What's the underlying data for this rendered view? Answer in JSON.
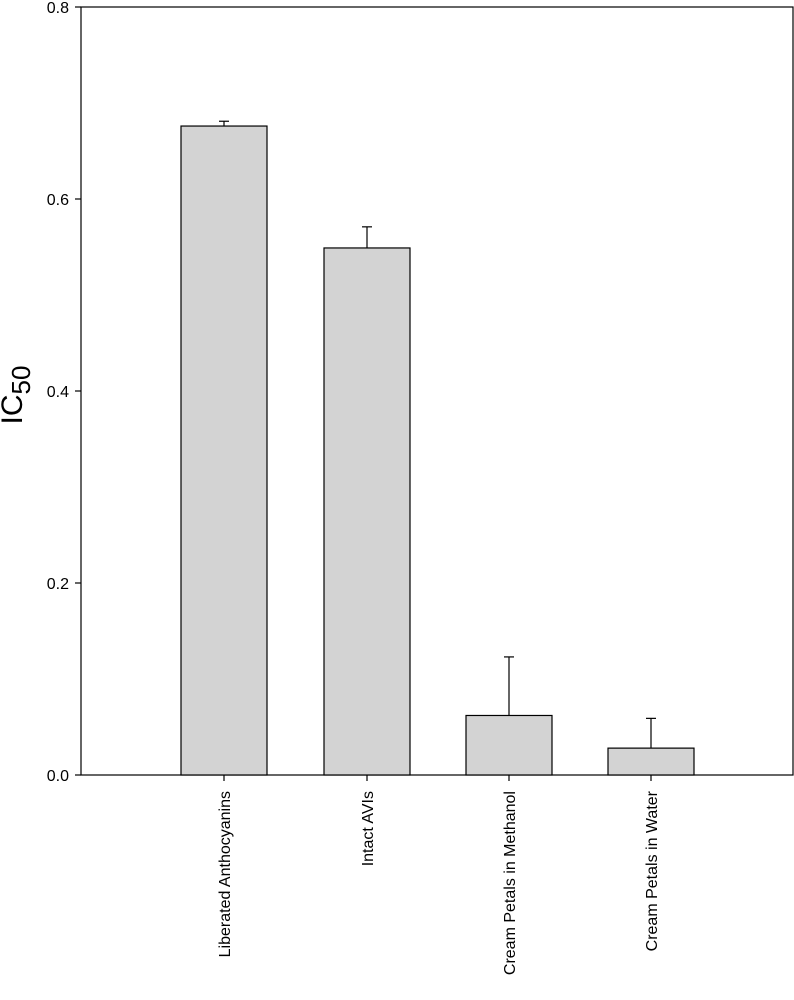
{
  "chart_data": {
    "type": "bar",
    "categories": [
      "Liberated Anthocyanins",
      "Intact AVIs",
      "Cream Petals in Methanol",
      "Cream Petals in Water"
    ],
    "series": [
      {
        "values": [
          0.676,
          0.549,
          0.062,
          0.028
        ],
        "error_plus": [
          0.005,
          0.022,
          0.061,
          0.031
        ]
      }
    ],
    "title": "",
    "xlabel": "",
    "ylabel": "IC",
    "ylabel_subscript": "50",
    "ylim": [
      0,
      0.8
    ],
    "yticks": [
      "0.0",
      "0.2",
      "0.4",
      "0.6",
      "0.8"
    ],
    "grid": false,
    "bar_color": "#d3d3d3",
    "edge_color": "#000000"
  }
}
